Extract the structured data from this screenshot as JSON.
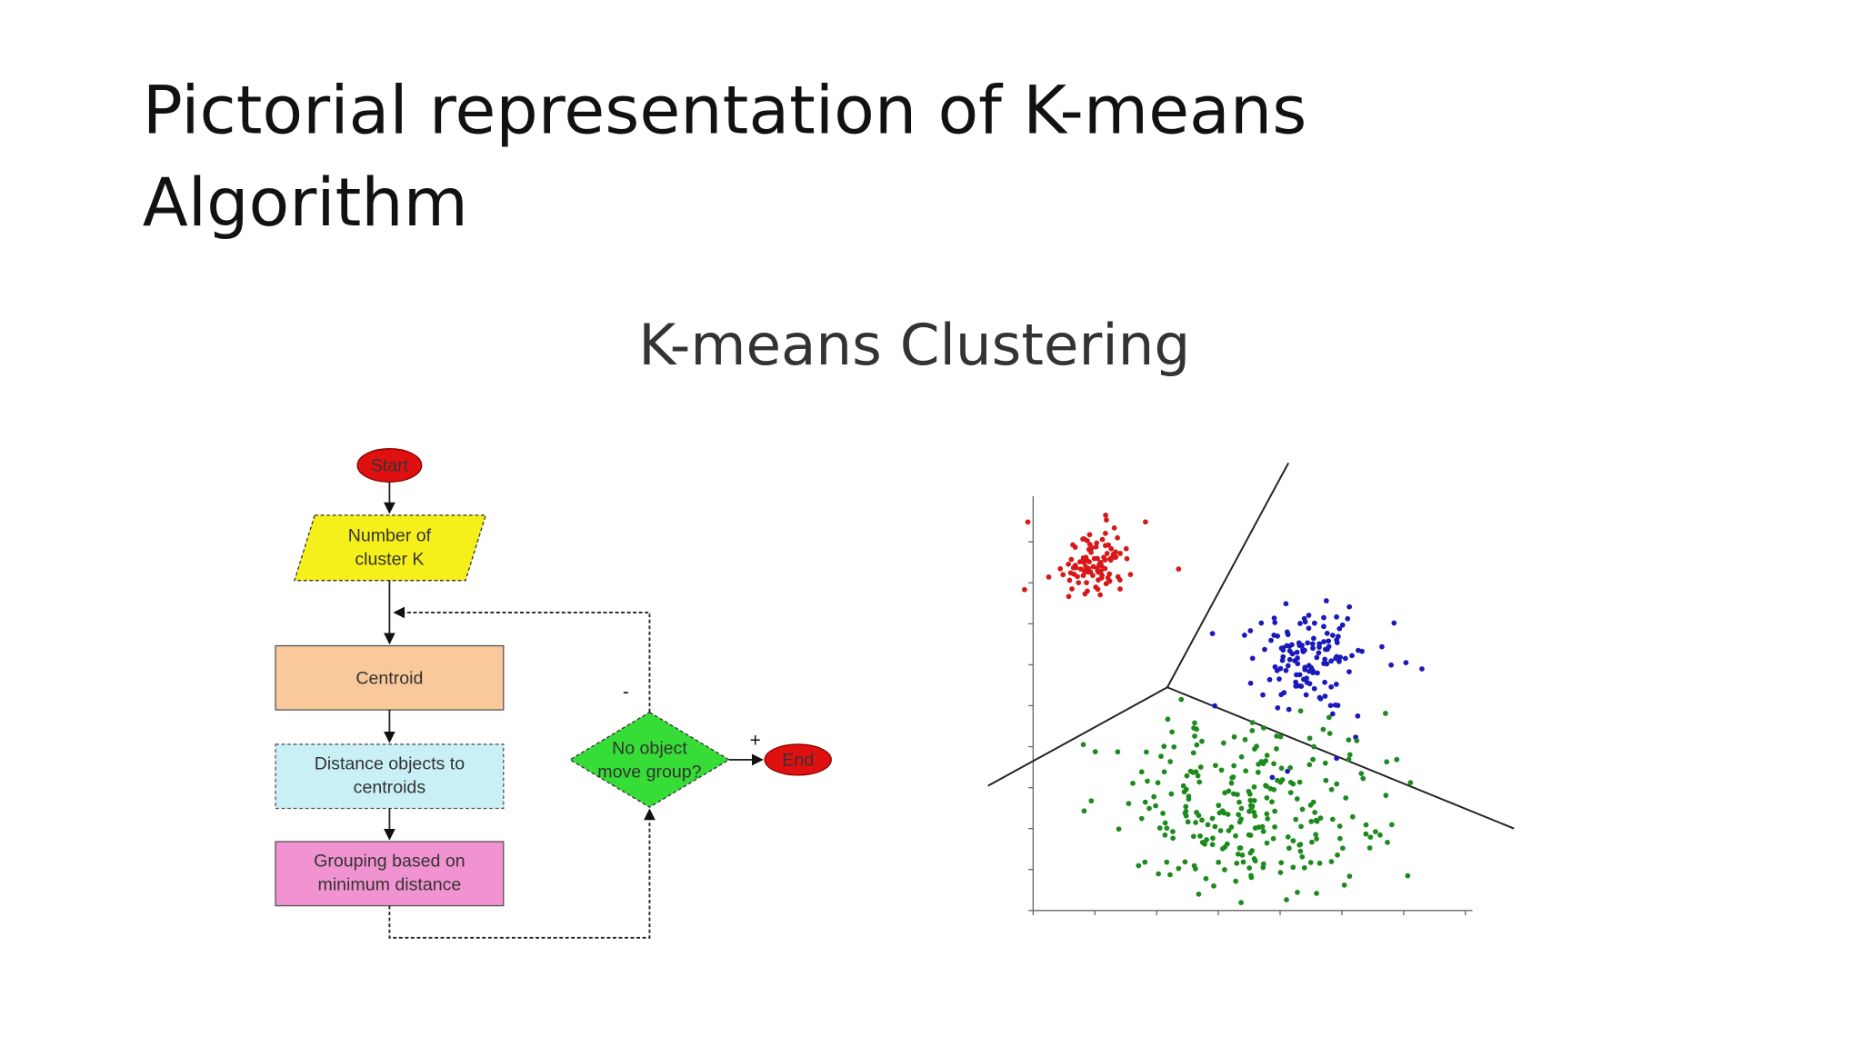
{
  "header": {
    "title": [
      "Pictorial representation of K-means",
      "Algorithm"
    ]
  },
  "figure": {
    "title": "K-means Clustering",
    "nodes": [
      {
        "label": [
          "Start"
        ]
      },
      {
        "label": [
          "Number of",
          "cluster K"
        ]
      },
      {
        "label": [
          "Centroid"
        ]
      },
      {
        "label": [
          "Distance objects to",
          "centroids"
        ]
      },
      {
        "label": [
          "Grouping based on",
          "minimum distance"
        ]
      },
      {
        "label": [
          "No object",
          "move group?"
        ]
      },
      {
        "label": [
          "End"
        ]
      }
    ],
    "edges": [
      "-",
      "+"
    ]
  }
}
